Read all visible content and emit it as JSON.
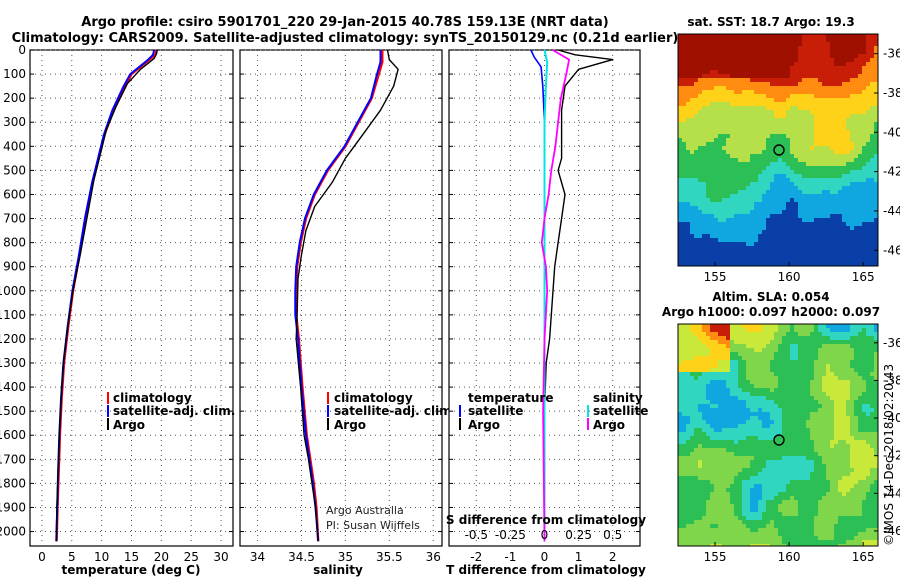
{
  "title_line1": "Argo profile: csiro 5901701_220 29-Jan-2015 40.78S 159.13E (NRT data)",
  "title_line2": "Climatology: CARS2009. Satellite-adjusted climatology: synTS_20150129.nc (0.21d earlier)",
  "credit_line1": "Argo Australia",
  "credit_line2": "PI: Susan Wijffels",
  "imos_stamp": "©IMOS 14-Dec-2018 02:20:43",
  "colors": {
    "climatology": "#ff0000",
    "satellite": "#0000ff",
    "argo": "#000000",
    "sat_salinity": "#00e5e5",
    "argo_salinity": "#ff00ff"
  },
  "legend_temp": {
    "climatology": "climatology",
    "satellite": "satellite-adj. clim.",
    "argo": "Argo"
  },
  "legend_sal": {
    "climatology": "climatology",
    "satellite": "satellite-adj. clim.",
    "argo": "Argo"
  },
  "legend_diff": {
    "temp_title": "temperature",
    "sal_title": "salinity",
    "satellite": "satellite",
    "argo": "Argo"
  },
  "diff_s_label": "S difference from climatology",
  "map_sst": {
    "title": "sat. SST: 18.7 Argo: 19.3",
    "xticks": [
      "155",
      "160",
      "165"
    ],
    "yticks": [
      "-36",
      "-38",
      "-40",
      "-42",
      "-44",
      "-46"
    ],
    "palette": [
      "#0a3fa8",
      "#10a6e0",
      "#30d6c0",
      "#2bbf55",
      "#b6e04a",
      "#ffd21a",
      "#ff8c10",
      "#c81e08",
      "#a01000"
    ]
  },
  "map_sla": {
    "title_line1": "Altim. SLA: 0.054",
    "title_line2": "Argo h1000: 0.097 h2000: 0.097",
    "xticks": [
      "155",
      "160",
      "165"
    ],
    "yticks": [
      "-36",
      "-38",
      "-40",
      "-42",
      "-44",
      "-46"
    ],
    "palette": [
      "#0a3fa8",
      "#10a6e0",
      "#30d6c0",
      "#2bbf55",
      "#7fd64a",
      "#c8e83a",
      "#ffd21a",
      "#ff8c10",
      "#c81e08"
    ]
  },
  "chart_data": [
    {
      "type": "line",
      "xlabel": "temperature (deg C)",
      "ylabel": "",
      "xlim": [
        -2,
        32
      ],
      "ylim": [
        2060,
        0
      ],
      "xticks": [
        "0",
        "5",
        "10",
        "15",
        "20",
        "25",
        "30"
      ],
      "yticks": [
        "0",
        "100",
        "200",
        "300",
        "400",
        "500",
        "600",
        "700",
        "800",
        "900",
        "1000",
        "1100",
        "1200",
        "1300",
        "1400",
        "1500",
        "1600",
        "1700",
        "1800",
        "1900",
        "2000"
      ],
      "grid": true,
      "legend": "middle",
      "series": [
        {
          "name": "climatology",
          "x": [
            19.2,
            19.0,
            18.0,
            15.0,
            14.0,
            12.0,
            10.5,
            9.5,
            8.5,
            7.3,
            6.3,
            5.2,
            4.4,
            3.7,
            3.3,
            3.0,
            2.8,
            2.6,
            2.45
          ],
          "y": [
            0,
            20,
            40,
            100,
            150,
            250,
            350,
            450,
            550,
            700,
            850,
            1000,
            1150,
            1300,
            1450,
            1600,
            1750,
            1900,
            2040
          ]
        },
        {
          "name": "satellite-adj. clim.",
          "x": [
            18.8,
            18.6,
            17.8,
            14.8,
            13.7,
            11.8,
            10.4,
            9.4,
            8.4,
            7.2,
            6.2,
            5.1,
            4.3,
            3.6,
            3.2,
            2.9,
            2.7,
            2.55,
            2.4
          ],
          "y": [
            0,
            20,
            40,
            100,
            150,
            250,
            350,
            450,
            550,
            700,
            850,
            1000,
            1150,
            1300,
            1450,
            1600,
            1750,
            1900,
            2040
          ]
        },
        {
          "name": "Argo",
          "x": [
            19.3,
            19.2,
            18.8,
            16.5,
            14.3,
            12.5,
            10.8,
            9.8,
            8.7,
            7.6,
            6.4,
            5.2,
            4.3,
            3.6,
            3.2,
            2.9,
            2.7,
            2.5,
            2.4
          ],
          "y": [
            0,
            15,
            35,
            80,
            140,
            230,
            330,
            430,
            540,
            690,
            850,
            1000,
            1150,
            1300,
            1450,
            1600,
            1750,
            1900,
            2040
          ]
        }
      ]
    },
    {
      "type": "line",
      "xlabel": "salinity",
      "ylabel": "",
      "xlim": [
        33.8,
        36.1
      ],
      "ylim": [
        2060,
        0
      ],
      "xticks": [
        "34",
        "34.5",
        "35",
        "35.5",
        "36"
      ],
      "grid": true,
      "legend": "middle",
      "series": [
        {
          "name": "climatology",
          "x": [
            35.42,
            35.42,
            35.38,
            35.3,
            35.15,
            35.0,
            34.8,
            34.65,
            34.55,
            34.49,
            34.45,
            34.44,
            34.44,
            34.47,
            34.51,
            34.56,
            34.6,
            34.64,
            34.67,
            34.69
          ],
          "y": [
            0,
            50,
            100,
            200,
            300,
            400,
            500,
            600,
            700,
            800,
            900,
            1000,
            1100,
            1200,
            1400,
            1600,
            1700,
            1800,
            1900,
            2040
          ]
        },
        {
          "name": "satellite-adj. clim.",
          "x": [
            35.4,
            35.4,
            35.36,
            35.29,
            35.14,
            34.99,
            34.79,
            34.64,
            34.54,
            34.48,
            34.44,
            34.43,
            34.43,
            34.46,
            34.5,
            34.55,
            34.59,
            34.63,
            34.66,
            34.69
          ],
          "y": [
            0,
            50,
            100,
            200,
            300,
            400,
            500,
            600,
            700,
            800,
            900,
            1000,
            1100,
            1200,
            1400,
            1600,
            1700,
            1800,
            1900,
            2040
          ]
        },
        {
          "name": "Argo",
          "x": [
            35.48,
            35.5,
            35.6,
            35.55,
            35.4,
            35.2,
            35.0,
            34.85,
            34.65,
            34.55,
            34.5,
            34.46,
            34.45,
            34.44,
            34.49,
            34.53,
            34.58,
            34.62,
            34.66,
            34.69
          ],
          "y": [
            0,
            40,
            80,
            150,
            250,
            350,
            450,
            550,
            650,
            750,
            850,
            950,
            1100,
            1200,
            1400,
            1600,
            1700,
            1800,
            1900,
            2040
          ]
        }
      ]
    },
    {
      "type": "line",
      "xlabel": "T difference from climatology",
      "ylabel": "",
      "xlim": [
        -2.8,
        2.8
      ],
      "ylim": [
        2060,
        0
      ],
      "xticks": [
        "-2",
        "-1",
        "0",
        "1",
        "2"
      ],
      "s_ticks": [
        "-0.5",
        "-0.25",
        "0",
        "0.25",
        "0.5"
      ],
      "grid": true,
      "legend": "bottom",
      "series": [
        {
          "name": "temperature satellite",
          "x": [
            -0.4,
            -0.3,
            -0.1,
            -0.05,
            0.0,
            0.0,
            0.0,
            0.0,
            0.0,
            0.0,
            0.0,
            0.0,
            0.0
          ],
          "y": [
            0,
            30,
            70,
            150,
            300,
            500,
            800,
            1100,
            1400,
            1600,
            1800,
            1900,
            2040
          ]
        },
        {
          "name": "temperature Argo",
          "x": [
            0.4,
            0.9,
            2.0,
            1.0,
            0.6,
            0.5,
            0.5,
            0.5,
            0.4,
            0.6,
            0.5,
            0.4,
            0.3,
            0.25,
            0.2,
            0.15,
            0.05,
            0.0,
            0.0,
            0.0
          ],
          "y": [
            0,
            20,
            40,
            80,
            150,
            250,
            350,
            450,
            500,
            600,
            700,
            800,
            900,
            1000,
            1100,
            1200,
            1300,
            1500,
            1700,
            2040
          ]
        },
        {
          "name": "salinity satellite",
          "x": [
            0.0,
            0.02,
            0.01,
            0.0,
            0.0,
            0.0,
            0.0,
            0.0,
            0.0,
            0.0
          ],
          "y": [
            0,
            50,
            150,
            300,
            500,
            800,
            1100,
            1500,
            1800,
            2040
          ]
        },
        {
          "name": "salinity Argo",
          "x": [
            0.06,
            0.18,
            0.16,
            0.12,
            0.1,
            0.08,
            0.05,
            0.03,
            0.0,
            -0.02,
            0.01,
            0.02,
            0.0,
            -0.01,
            0.0
          ],
          "y": [
            0,
            40,
            100,
            200,
            300,
            400,
            500,
            600,
            700,
            800,
            900,
            1000,
            1200,
            1500,
            2040
          ]
        }
      ]
    }
  ]
}
